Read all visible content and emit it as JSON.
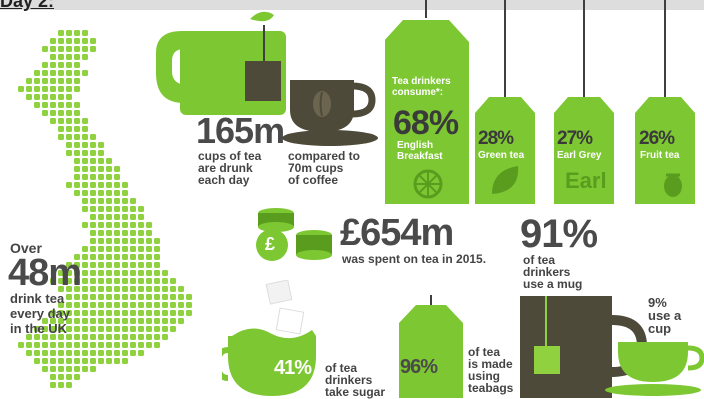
{
  "corner_label": "Day 2:",
  "uk": {
    "over": "Over",
    "value": "48m",
    "line1": "drink tea",
    "line2": "every day",
    "line3": "in the UK"
  },
  "cups": {
    "value": "165m",
    "line1": "cups of tea",
    "line2": "are drunk",
    "line3": "each day",
    "cmp1": "compared to",
    "cmp2": "70m cups",
    "cmp3": "of coffee"
  },
  "consume": {
    "line1": "Tea drinkers",
    "line2": "consume*:",
    "items": [
      {
        "pct": "68%",
        "label1": "English",
        "label2": "Breakfast"
      },
      {
        "pct": "28%",
        "label1": "Green tea",
        "label2": ""
      },
      {
        "pct": "27%",
        "label1": "Earl Grey",
        "label2": ""
      },
      {
        "pct": "26%",
        "label1": "Fruit tea",
        "label2": ""
      }
    ],
    "earl_text": "Earl"
  },
  "spent": {
    "value": "£654m",
    "text": "was spent on tea in 2015.",
    "pound": "£"
  },
  "mug": {
    "value": "91%",
    "line1": "of tea",
    "line2": "drinkers",
    "line3": "use a mug"
  },
  "cup": {
    "line1": "9%",
    "line2": "use a",
    "line3": "cup"
  },
  "sugar": {
    "value": "41%",
    "line1": "of tea",
    "line2": "drinkers",
    "line3": "take sugar"
  },
  "teabag": {
    "value": "96%",
    "line1": "of tea",
    "line2": "is made",
    "line3": "using",
    "line4": "teabags"
  },
  "colors": {
    "green": "#7dc832",
    "dark_green": "#5a9d1e",
    "olive": "#4e4a3a",
    "gray": "#555555"
  }
}
